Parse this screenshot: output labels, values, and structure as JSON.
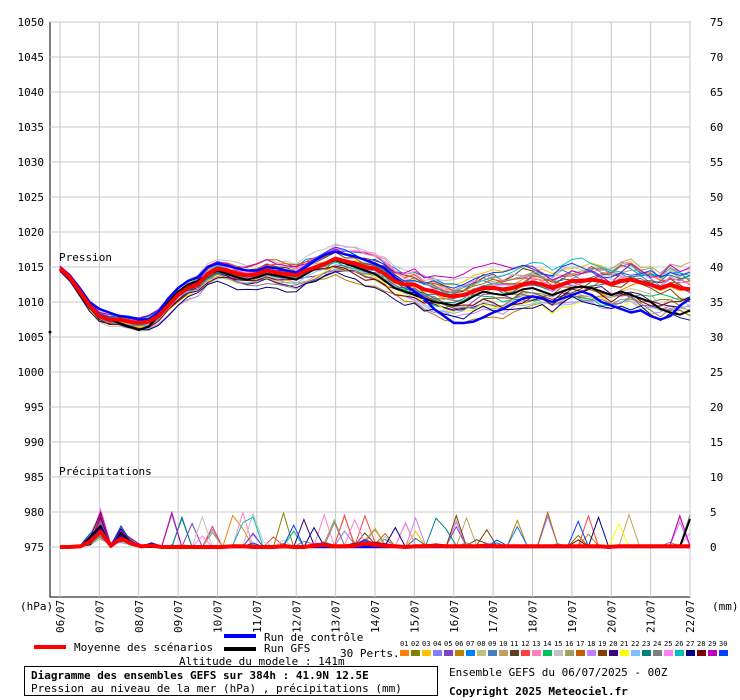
{
  "chart_data": {
    "type": "line",
    "title": "Diagramme des ensembles GEFS sur 384h : 41.9N 12.5E",
    "subtitle": "Pression au niveau de la mer (hPa) , précipitations (mm)",
    "left_axis_unit": "(hPa)",
    "right_axis_unit": "(mm)",
    "left_ticks": [
      975,
      980,
      985,
      990,
      995,
      1000,
      1005,
      1010,
      1015,
      1020,
      1025,
      1030,
      1035,
      1040,
      1045,
      1050
    ],
    "right_ticks": [
      0,
      5,
      10,
      15,
      20,
      25,
      30,
      35,
      40,
      45,
      50,
      55,
      60,
      65,
      70,
      75
    ],
    "x_ticks": [
      "06/07",
      "07/07",
      "08/07",
      "09/07",
      "10/07",
      "11/07",
      "12/07",
      "13/07",
      "14/07",
      "15/07",
      "16/07",
      "17/07",
      "18/07",
      "19/07",
      "20/07",
      "21/07",
      "22/07"
    ],
    "pressure_label": "Pression",
    "precip_label": "Précipitations",
    "grid": true,
    "pressure_mean": {
      "name": "Moyenne des scénarios",
      "color": "#ff0000",
      "values": [
        1014.8,
        1013.5,
        1011.5,
        1009.5,
        1008.0,
        1007.5,
        1007.5,
        1007.2,
        1007.0,
        1007.2,
        1008.0,
        1009.5,
        1011.0,
        1012.0,
        1012.5,
        1014.0,
        1014.8,
        1014.5,
        1014.0,
        1013.8,
        1014.0,
        1014.5,
        1014.2,
        1014.0,
        1013.8,
        1014.5,
        1015.0,
        1015.5,
        1016.2,
        1015.8,
        1015.5,
        1015.0,
        1014.8,
        1014.0,
        1013.0,
        1012.5,
        1012.5,
        1011.8,
        1011.5,
        1011.0,
        1010.8,
        1011.0,
        1011.5,
        1012.0,
        1012.0,
        1011.8,
        1012.0,
        1012.5,
        1012.8,
        1012.5,
        1012.0,
        1012.5,
        1013.0,
        1013.0,
        1013.2,
        1013.0,
        1012.5,
        1013.0,
        1013.2,
        1012.8,
        1012.5,
        1012.0,
        1012.5,
        1012.0,
        1011.8
      ]
    },
    "pressure_control": {
      "name": "Run de contrôle",
      "color": "#0000ff",
      "values": [
        1014.8,
        1013.8,
        1012.0,
        1010.0,
        1009.0,
        1008.5,
        1008.0,
        1007.8,
        1007.5,
        1007.5,
        1008.5,
        1010.5,
        1012.0,
        1013.0,
        1013.5,
        1015.0,
        1015.5,
        1015.2,
        1014.8,
        1014.5,
        1014.5,
        1015.0,
        1014.8,
        1014.5,
        1014.2,
        1015.0,
        1016.0,
        1016.8,
        1017.2,
        1016.8,
        1016.5,
        1016.0,
        1015.5,
        1014.8,
        1013.5,
        1012.5,
        1011.5,
        1010.5,
        1009.0,
        1008.0,
        1007.0,
        1007.0,
        1007.2,
        1007.8,
        1008.5,
        1009.0,
        1009.8,
        1010.5,
        1010.8,
        1010.5,
        1010.0,
        1010.5,
        1011.0,
        1011.5,
        1011.0,
        1010.0,
        1009.5,
        1009.0,
        1008.5,
        1008.8,
        1008.0,
        1007.5,
        1008.0,
        1009.5,
        1010.5
      ]
    },
    "pressure_gfs": {
      "name": "Run GFS",
      "color": "#000000",
      "values": [
        1014.8,
        1013.5,
        1011.0,
        1009.2,
        1008.0,
        1007.5,
        1007.0,
        1006.5,
        1006.0,
        1006.5,
        1008.0,
        1010.0,
        1011.5,
        1012.5,
        1013.0,
        1014.0,
        1014.5,
        1014.0,
        1013.5,
        1013.2,
        1013.5,
        1014.0,
        1013.8,
        1013.5,
        1013.2,
        1014.0,
        1014.8,
        1015.5,
        1016.0,
        1015.5,
        1015.0,
        1014.5,
        1014.0,
        1013.0,
        1012.0,
        1011.5,
        1011.0,
        1010.5,
        1010.0,
        1009.8,
        1009.5,
        1010.0,
        1010.8,
        1011.5,
        1011.2,
        1011.0,
        1011.2,
        1011.8,
        1012.0,
        1011.5,
        1011.0,
        1011.5,
        1012.0,
        1012.2,
        1012.0,
        1011.5,
        1011.0,
        1011.5,
        1011.0,
        1010.5,
        1010.0,
        1009.0,
        1008.5,
        1008.2,
        1008.8
      ]
    },
    "precip_mean": [
      0,
      0,
      0.1,
      0.8,
      2.2,
      0.2,
      1.2,
      0.5,
      0.1,
      0.2,
      0,
      0,
      0,
      0,
      0,
      0,
      0,
      0.1,
      0.1,
      0,
      0,
      0,
      0.1,
      0,
      0,
      0.2,
      0.3,
      0.1,
      0.1,
      0.2,
      0.5,
      0.3,
      0.2,
      0.1,
      0,
      0.1,
      0.1,
      0.2,
      0.1,
      0.1,
      0.1,
      0.1,
      0.2,
      0.1,
      0.1,
      0.1,
      0.1,
      0.1,
      0.1,
      0.1,
      0.1,
      0.1,
      0.1,
      0.1,
      0,
      0.1,
      0.1,
      0.1,
      0.1,
      0.1,
      0.1,
      0.1,
      0.1
    ],
    "precip_control": [
      0,
      0,
      0,
      1.0,
      2.5,
      0.3,
      1.5,
      0.5,
      0,
      0.5,
      0,
      0,
      0,
      0,
      0,
      0,
      0,
      0,
      0,
      0,
      0,
      0,
      0,
      0,
      0,
      0,
      0,
      0,
      0,
      0,
      0,
      0,
      0,
      0,
      0,
      0,
      0,
      0,
      0,
      0,
      0,
      0,
      0,
      0,
      0,
      0,
      0,
      0,
      0,
      0,
      0,
      0,
      0,
      0,
      0,
      0,
      0,
      0,
      0,
      0,
      0,
      0,
      0
    ],
    "precip_gfs": [
      0,
      0,
      0,
      1.5,
      3.0,
      0,
      2.0,
      0.5,
      0,
      0,
      0,
      0,
      0,
      0,
      0,
      0,
      0,
      0,
      0,
      0,
      0,
      0,
      0,
      0,
      0,
      0,
      0,
      0,
      0,
      0,
      0,
      0,
      0,
      0,
      0,
      0,
      0,
      0,
      0,
      0,
      0,
      0,
      0,
      0,
      0,
      0,
      0,
      0,
      0,
      0,
      0,
      0,
      0,
      0,
      0,
      0,
      0,
      0,
      0,
      0,
      0,
      0,
      4.0
    ],
    "left_isolated_marker": 1005.7
  },
  "legend": {
    "mean_label": "Moyenne des scénarios",
    "control_label": "Run de contrôle",
    "gfs_label": "Run GFS",
    "perts_label": "30 Perts.",
    "mean_color": "#ff0000",
    "control_color": "#0000ff",
    "gfs_color": "#000000"
  },
  "perturbations": [
    {
      "n": "01",
      "c": "#ff8000"
    },
    {
      "n": "02",
      "c": "#808000"
    },
    {
      "n": "03",
      "c": "#ffc000"
    },
    {
      "n": "04",
      "c": "#8080ff"
    },
    {
      "n": "05",
      "c": "#8040c0"
    },
    {
      "n": "06",
      "c": "#c08000"
    },
    {
      "n": "07",
      "c": "#0080ff"
    },
    {
      "n": "08",
      "c": "#c0c080"
    },
    {
      "n": "09",
      "c": "#4080c0"
    },
    {
      "n": "10",
      "c": "#c0a060"
    },
    {
      "n": "11",
      "c": "#604020"
    },
    {
      "n": "12",
      "c": "#ff4040"
    },
    {
      "n": "13",
      "c": "#ff80c0"
    },
    {
      "n": "14",
      "c": "#00c060"
    },
    {
      "n": "15",
      "c": "#c0c0c0"
    },
    {
      "n": "16",
      "c": "#a0a060"
    },
    {
      "n": "17",
      "c": "#c06000"
    },
    {
      "n": "18",
      "c": "#c080ff"
    },
    {
      "n": "19",
      "c": "#804000"
    },
    {
      "n": "20",
      "c": "#400080"
    },
    {
      "n": "21",
      "c": "#ffff00"
    },
    {
      "n": "22",
      "c": "#80c0ff"
    },
    {
      "n": "23",
      "c": "#008080"
    },
    {
      "n": "24",
      "c": "#808080"
    },
    {
      "n": "25",
      "c": "#ff80ff"
    },
    {
      "n": "26",
      "c": "#00c0c0"
    },
    {
      "n": "27",
      "c": "#000080"
    },
    {
      "n": "28",
      "c": "#800000"
    },
    {
      "n": "29",
      "c": "#c000c0"
    },
    {
      "n": "30",
      "c": "#0040ff"
    }
  ],
  "footer": {
    "model_altitude": "Altitude du modele : 141m",
    "title": "Diagramme des ensembles GEFS sur 384h : 41.9N 12.5E",
    "subtitle": "Pression au niveau de la mer (hPa) , précipitations (mm)",
    "run_info": "Ensemble GEFS du 06/07/2025 - 00Z",
    "copyright": "Copyright 2025 Meteociel.fr"
  }
}
